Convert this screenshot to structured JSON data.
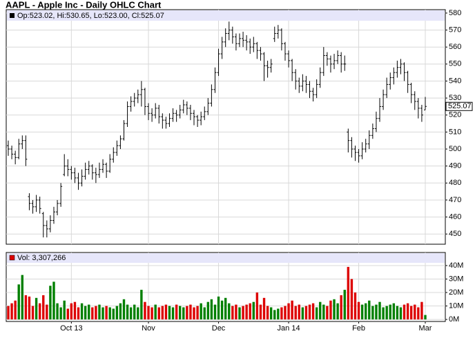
{
  "chart_data": {
    "type": "ohlc",
    "title": "AAPL - Apple Inc - Daily OHLC Chart",
    "price_legend": "Op:523.02, Hi:530.65, Lo:523.00, Cl:525.07",
    "volume_legend": "Vol: 3,307,266",
    "categories": [
      null,
      null,
      null,
      null,
      null,
      null,
      null,
      null,
      null,
      null,
      null,
      null,
      null,
      null,
      null,
      null,
      null,
      null,
      "Oct 13",
      null,
      null,
      null,
      null,
      null,
      null,
      null,
      null,
      null,
      null,
      null,
      null,
      null,
      null,
      null,
      null,
      null,
      null,
      null,
      null,
      null,
      "Nov",
      null,
      null,
      null,
      null,
      null,
      null,
      null,
      null,
      null,
      null,
      null,
      null,
      null,
      null,
      null,
      null,
      null,
      null,
      null,
      "Dec",
      null,
      null,
      null,
      null,
      null,
      null,
      null,
      null,
      null,
      null,
      null,
      null,
      null,
      null,
      null,
      null,
      null,
      null,
      null,
      "Jan 14",
      null,
      null,
      null,
      null,
      null,
      null,
      null,
      null,
      null,
      null,
      null,
      null,
      null,
      null,
      null,
      null,
      null,
      null,
      null,
      "Feb",
      null,
      null,
      null,
      null,
      null,
      null,
      null,
      null,
      null,
      null,
      null,
      null,
      null,
      null,
      null,
      null,
      null,
      null,
      "Mar"
    ],
    "open": [
      502,
      500,
      497,
      495,
      503,
      505,
      472,
      468,
      466,
      470,
      462,
      455,
      453,
      458,
      463,
      468,
      485,
      490,
      488,
      486,
      483,
      480,
      484,
      488,
      490,
      486,
      485,
      488,
      491,
      487,
      494,
      498,
      502,
      506,
      515,
      525,
      528,
      530,
      532,
      535,
      525,
      521,
      520,
      524,
      519,
      517,
      515,
      518,
      521,
      520,
      523,
      526,
      524,
      521,
      519,
      517,
      519,
      522,
      527,
      535,
      545,
      556,
      563,
      568,
      570,
      566,
      562,
      565,
      564,
      563,
      560,
      562,
      558,
      556,
      549,
      548,
      565,
      568,
      570,
      562,
      556,
      552,
      545,
      540,
      537,
      540,
      538,
      534,
      532,
      538,
      545,
      555,
      553,
      550,
      552,
      555,
      550,
      510,
      505,
      500,
      498,
      496,
      500,
      503,
      508,
      512,
      518,
      525,
      532,
      538,
      542,
      545,
      548,
      550,
      545,
      538,
      532,
      528,
      524,
      523.02
    ],
    "high": [
      505,
      502,
      499,
      506,
      508,
      508,
      474,
      470,
      473,
      472,
      463,
      458,
      461,
      466,
      470,
      480,
      497,
      494,
      490,
      489,
      486,
      488,
      492,
      493,
      491,
      489,
      492,
      494,
      492,
      497,
      501,
      505,
      508,
      517,
      528,
      531,
      533,
      535,
      540,
      536,
      527,
      524,
      527,
      526,
      521,
      519,
      521,
      524,
      523,
      526,
      529,
      528,
      526,
      523,
      520,
      522,
      525,
      530,
      538,
      548,
      559,
      566,
      571,
      575,
      572,
      568,
      568,
      569,
      567,
      565,
      566,
      563,
      560,
      557,
      552,
      553,
      572,
      573,
      571,
      563,
      558,
      553,
      547,
      542,
      544,
      543,
      540,
      536,
      541,
      548,
      560,
      557,
      555,
      556,
      558,
      557,
      555,
      512,
      507,
      502,
      500,
      504,
      506,
      511,
      515,
      522,
      530,
      535,
      542,
      545,
      548,
      552,
      553,
      551,
      546,
      539,
      534,
      530,
      526,
      530.65
    ],
    "low": [
      496,
      494,
      491,
      494,
      500,
      490,
      464,
      462,
      463,
      462,
      448,
      448,
      451,
      456,
      461,
      466,
      484,
      484,
      482,
      480,
      476,
      478,
      482,
      485,
      482,
      480,
      483,
      486,
      483,
      486,
      492,
      496,
      500,
      505,
      513,
      522,
      525,
      527,
      525,
      520,
      517,
      516,
      518,
      515,
      512,
      512,
      513,
      516,
      516,
      518,
      521,
      520,
      517,
      514,
      513,
      514,
      517,
      520,
      525,
      533,
      543,
      553,
      560,
      564,
      562,
      558,
      560,
      560,
      558,
      556,
      557,
      553,
      552,
      540,
      542,
      545,
      563,
      565,
      558,
      552,
      548,
      540,
      535,
      533,
      534,
      533,
      530,
      528,
      530,
      536,
      543,
      549,
      545,
      547,
      550,
      545,
      546,
      498,
      495,
      493,
      492,
      494,
      498,
      500,
      506,
      510,
      516,
      523,
      530,
      535,
      538,
      542,
      544,
      540,
      533,
      527,
      523,
      518,
      516,
      523.0
    ],
    "close": [
      500,
      497,
      495,
      503,
      505,
      494,
      468,
      466,
      470,
      465,
      455,
      453,
      458,
      463,
      468,
      478,
      490,
      488,
      486,
      483,
      480,
      484,
      488,
      490,
      486,
      485,
      488,
      491,
      487,
      494,
      498,
      502,
      506,
      515,
      525,
      528,
      530,
      532,
      535,
      525,
      521,
      520,
      524,
      519,
      517,
      515,
      518,
      521,
      520,
      523,
      526,
      524,
      521,
      519,
      517,
      519,
      522,
      527,
      535,
      545,
      556,
      563,
      568,
      570,
      566,
      562,
      565,
      564,
      563,
      560,
      562,
      558,
      556,
      549,
      548,
      550,
      568,
      570,
      562,
      556,
      552,
      545,
      540,
      537,
      540,
      538,
      534,
      532,
      538,
      545,
      555,
      553,
      550,
      552,
      555,
      550,
      550,
      505,
      500,
      498,
      496,
      500,
      503,
      508,
      512,
      518,
      525,
      532,
      538,
      542,
      545,
      548,
      550,
      545,
      538,
      532,
      528,
      524,
      520,
      525.07
    ],
    "volume": [
      10000000,
      12000000,
      14000000,
      26000000,
      33000000,
      18000000,
      17000000,
      10000000,
      16000000,
      12000000,
      18000000,
      11000000,
      25000000,
      28000000,
      12000000,
      9000000,
      14000000,
      8000000,
      12000000,
      13000000,
      9000000,
      12000000,
      10000000,
      11000000,
      9000000,
      10000000,
      11000000,
      9000000,
      10000000,
      9000000,
      8000000,
      10000000,
      12000000,
      15000000,
      11000000,
      9000000,
      11000000,
      9000000,
      22000000,
      13000000,
      10000000,
      9000000,
      11000000,
      9000000,
      10000000,
      11000000,
      10000000,
      9000000,
      11000000,
      10000000,
      9000000,
      10000000,
      11000000,
      9000000,
      10000000,
      12000000,
      9000000,
      13000000,
      15000000,
      11000000,
      17000000,
      14000000,
      16000000,
      12000000,
      10000000,
      11000000,
      9000000,
      10000000,
      11000000,
      12000000,
      13000000,
      20000000,
      11000000,
      16000000,
      10000000,
      9000000,
      7000000,
      8000000,
      9000000,
      10000000,
      12000000,
      14000000,
      10000000,
      11000000,
      9000000,
      10000000,
      11000000,
      12000000,
      9000000,
      13000000,
      11000000,
      10000000,
      14000000,
      15000000,
      12000000,
      18000000,
      22000000,
      39000000,
      30000000,
      20000000,
      13000000,
      11000000,
      12000000,
      14000000,
      10000000,
      11000000,
      13000000,
      9000000,
      10000000,
      11000000,
      12000000,
      10000000,
      9000000,
      11000000,
      12000000,
      10000000,
      11000000,
      9000000,
      13000000,
      3307266
    ],
    "bar_color": "#000000",
    "up_color": "#008000",
    "down_color": "#dd0000",
    "ylim": [
      444,
      582
    ],
    "yticks": [
      450,
      460,
      470,
      480,
      490,
      500,
      510,
      520,
      530,
      540,
      550,
      560,
      570,
      580
    ],
    "y2lim": [
      -1500000,
      49700000
    ],
    "y2ticks": [
      {
        "value": 0,
        "label": "0M"
      },
      {
        "value": 10000000,
        "label": "10M"
      },
      {
        "value": 20000000,
        "label": "20M"
      },
      {
        "value": 30000000,
        "label": "30M"
      },
      {
        "value": 40000000,
        "label": "40M"
      }
    ],
    "grid": true
  }
}
